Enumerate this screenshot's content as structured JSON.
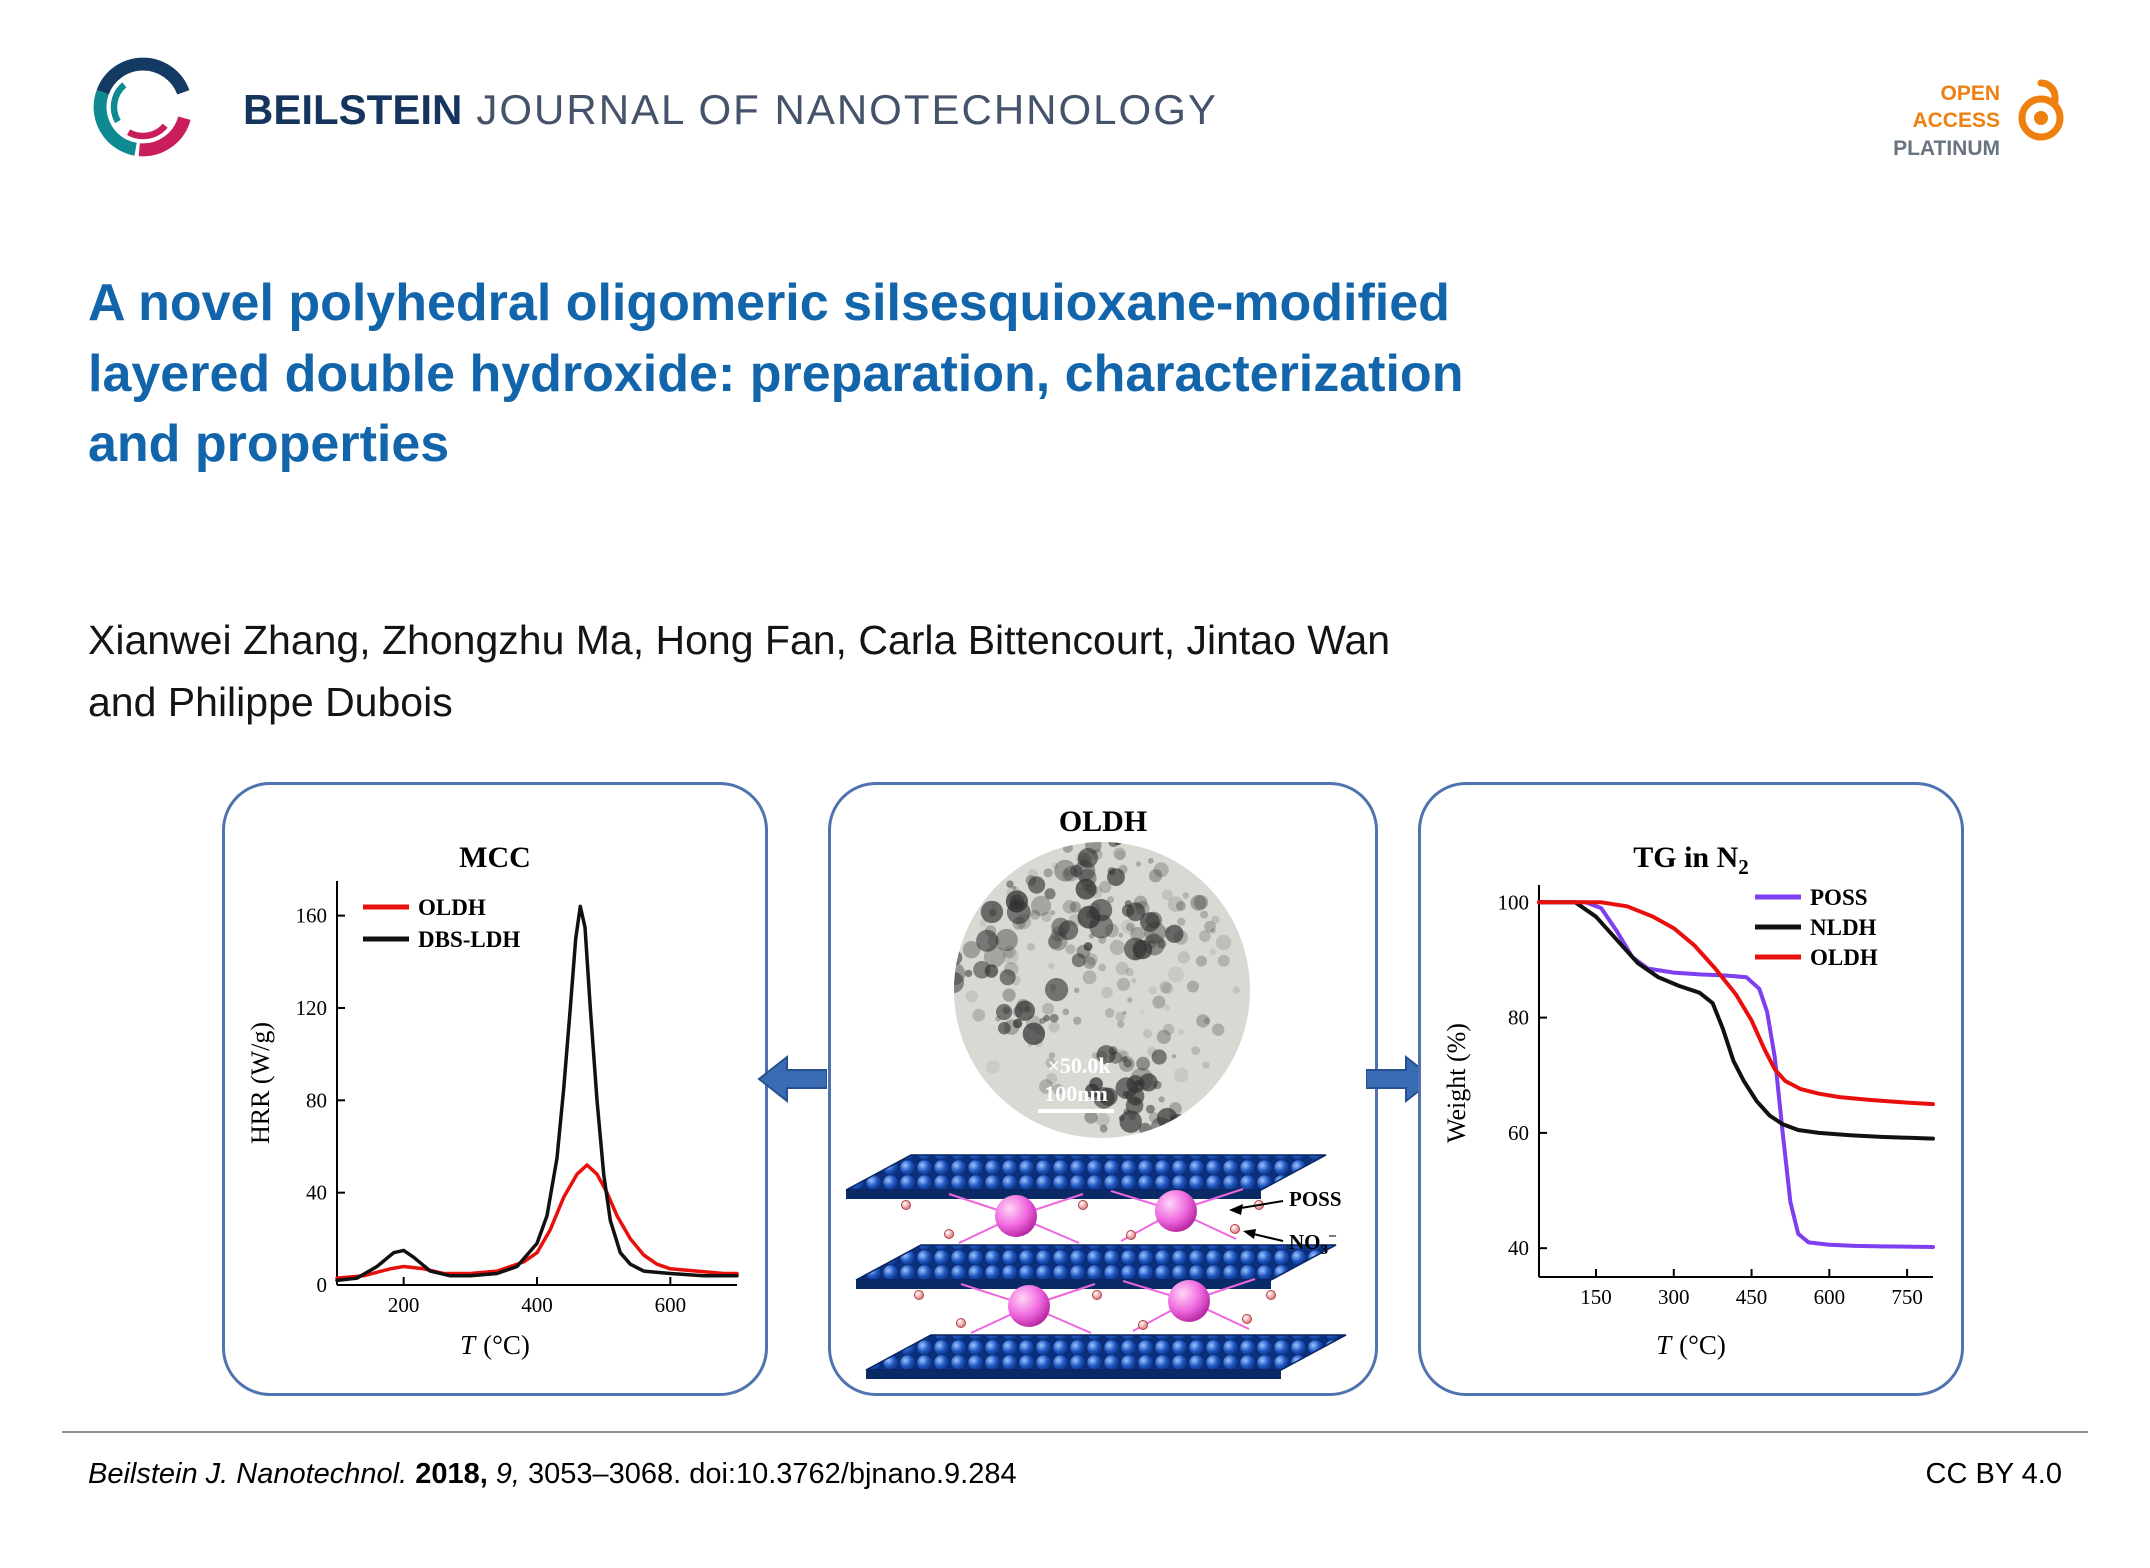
{
  "header": {
    "brand_bold": "BEILSTEIN",
    "brand_rest": "JOURNAL OF NANOTECHNOLOGY",
    "open_access": {
      "line1": "OPEN",
      "line2": "ACCESS",
      "line3": "PLATINUM"
    }
  },
  "title_lines": [
    "A novel polyhedral oligomeric silsesquioxane-modified",
    "layered double hydroxide: preparation, characterization",
    "and properties"
  ],
  "authors_line1": "Xianwei Zhang, Zhongzhu Ma, Hong Fan, Carla Bittencourt, Jintao Wan",
  "authors_line2": "and Philippe Dubois",
  "abstract": {
    "middle_title": "OLDH",
    "tem": {
      "magnification": "×50.0k",
      "scale_bar": "100nm"
    },
    "labels": {
      "poss": "POSS",
      "no3_base": "NO",
      "no3_sub": "3",
      "no3_sup": "−"
    }
  },
  "chart_data": [
    {
      "type": "line",
      "title": "MCC",
      "xlabel_italic": "T",
      "xlabel_rest": "(°C)",
      "ylabel": "HRR (W/g)",
      "xlim": [
        100,
        700
      ],
      "ylim": [
        0,
        175
      ],
      "xticks": [
        200,
        400,
        600
      ],
      "yticks": [
        0,
        40,
        80,
        120,
        160
      ],
      "grid": false,
      "legend_position": "top-left",
      "series": [
        {
          "name": "OLDH",
          "color": "#e8100c",
          "width": 3.5,
          "points": [
            [
              100,
              3
            ],
            [
              140,
              4
            ],
            [
              180,
              7
            ],
            [
              200,
              8
            ],
            [
              230,
              7
            ],
            [
              260,
              5
            ],
            [
              300,
              5
            ],
            [
              340,
              6
            ],
            [
              380,
              10
            ],
            [
              400,
              14
            ],
            [
              420,
              24
            ],
            [
              440,
              38
            ],
            [
              460,
              48
            ],
            [
              475,
              52
            ],
            [
              490,
              48
            ],
            [
              505,
              40
            ],
            [
              520,
              30
            ],
            [
              540,
              20
            ],
            [
              560,
              13
            ],
            [
              580,
              9
            ],
            [
              600,
              7
            ],
            [
              640,
              6
            ],
            [
              680,
              5
            ],
            [
              700,
              5
            ]
          ]
        },
        {
          "name": "DBS-LDH",
          "color": "#111111",
          "width": 3.5,
          "points": [
            [
              100,
              2
            ],
            [
              130,
              3
            ],
            [
              160,
              8
            ],
            [
              185,
              14
            ],
            [
              200,
              15
            ],
            [
              215,
              12
            ],
            [
              240,
              6
            ],
            [
              270,
              4
            ],
            [
              300,
              4
            ],
            [
              340,
              5
            ],
            [
              370,
              8
            ],
            [
              400,
              18
            ],
            [
              415,
              30
            ],
            [
              430,
              55
            ],
            [
              440,
              85
            ],
            [
              450,
              120
            ],
            [
              458,
              150
            ],
            [
              465,
              164
            ],
            [
              472,
              155
            ],
            [
              480,
              120
            ],
            [
              490,
              80
            ],
            [
              500,
              48
            ],
            [
              510,
              28
            ],
            [
              525,
              14
            ],
            [
              540,
              9
            ],
            [
              560,
              6
            ],
            [
              600,
              5
            ],
            [
              650,
              4
            ],
            [
              700,
              4
            ]
          ]
        }
      ]
    },
    {
      "type": "line",
      "title": "TG in N2",
      "title_main": "TG in N",
      "title_sub": "2",
      "xlabel_italic": "T",
      "xlabel_rest": "(°C)",
      "ylabel": "Weight (%)",
      "xlim": [
        40,
        800
      ],
      "ylim": [
        35,
        103
      ],
      "xticks": [
        150,
        300,
        450,
        600,
        750
      ],
      "yticks": [
        40,
        60,
        80,
        100
      ],
      "grid": false,
      "legend_position": "top-right",
      "series": [
        {
          "name": "POSS",
          "color": "#7d3ff0",
          "width": 4,
          "points": [
            [
              40,
              100
            ],
            [
              130,
              100
            ],
            [
              160,
              99
            ],
            [
              190,
              95
            ],
            [
              220,
              90.5
            ],
            [
              250,
              88.5
            ],
            [
              300,
              87.8
            ],
            [
              350,
              87.5
            ],
            [
              400,
              87.3
            ],
            [
              440,
              87
            ],
            [
              465,
              85
            ],
            [
              480,
              81
            ],
            [
              495,
              73
            ],
            [
              510,
              60
            ],
            [
              525,
              48
            ],
            [
              540,
              42.5
            ],
            [
              560,
              41
            ],
            [
              600,
              40.6
            ],
            [
              650,
              40.4
            ],
            [
              700,
              40.3
            ],
            [
              800,
              40.2
            ]
          ]
        },
        {
          "name": "NLDH",
          "color": "#111111",
          "width": 4,
          "points": [
            [
              40,
              100
            ],
            [
              110,
              100
            ],
            [
              150,
              97.5
            ],
            [
              190,
              93.5
            ],
            [
              230,
              89.5
            ],
            [
              270,
              87
            ],
            [
              310,
              85.5
            ],
            [
              350,
              84.3
            ],
            [
              375,
              82.5
            ],
            [
              395,
              78
            ],
            [
              415,
              72.5
            ],
            [
              435,
              69
            ],
            [
              460,
              65.5
            ],
            [
              485,
              63
            ],
            [
              510,
              61.5
            ],
            [
              540,
              60.5
            ],
            [
              580,
              60
            ],
            [
              640,
              59.6
            ],
            [
              700,
              59.3
            ],
            [
              800,
              59
            ]
          ]
        },
        {
          "name": "OLDH",
          "color": "#e8100c",
          "width": 4,
          "points": [
            [
              40,
              100
            ],
            [
              160,
              100
            ],
            [
              210,
              99.3
            ],
            [
              260,
              97.5
            ],
            [
              300,
              95.5
            ],
            [
              340,
              92.5
            ],
            [
              380,
              88.5
            ],
            [
              420,
              84
            ],
            [
              450,
              79.5
            ],
            [
              475,
              74.5
            ],
            [
              495,
              71
            ],
            [
              515,
              69
            ],
            [
              545,
              67.6
            ],
            [
              580,
              66.8
            ],
            [
              620,
              66.2
            ],
            [
              680,
              65.7
            ],
            [
              740,
              65.3
            ],
            [
              800,
              65
            ]
          ]
        }
      ]
    }
  ],
  "footer": {
    "journal": "Beilstein J. Nanotechnol.",
    "year": "2018,",
    "volume": "9,",
    "pages_doi": "3053–3068. doi:10.3762/bjnano.9.284",
    "license": "CC BY 4.0"
  },
  "colors": {
    "title_blue": "#1365ab",
    "brand_navy": "#16355e",
    "open_access_orange": "#ee8010",
    "panel_border": "#4f73ae",
    "arrow_blue": "#3a6cb5"
  }
}
